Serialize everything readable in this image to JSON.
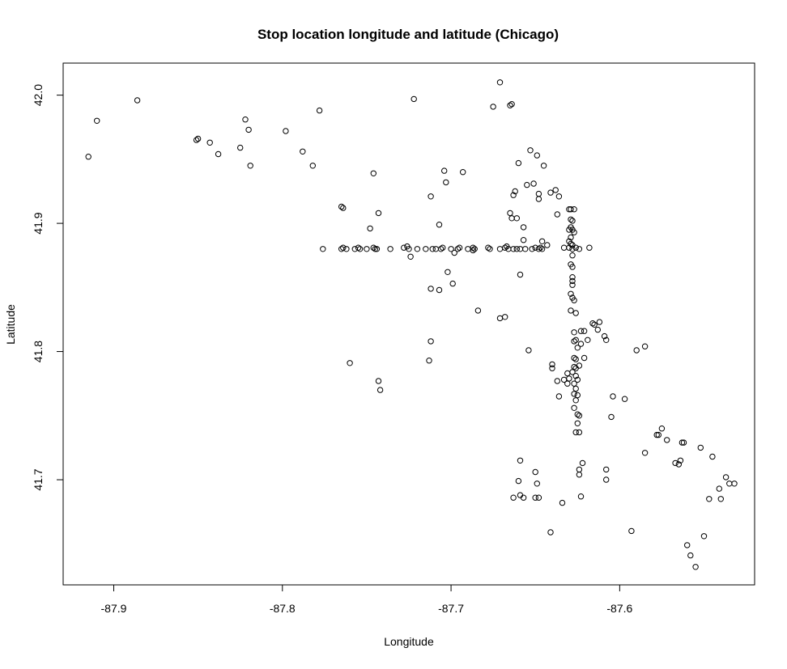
{
  "chart_data": {
    "type": "scatter",
    "title": "Stop location longitude and latitude (Chicago)",
    "xlabel": "Longitude",
    "ylabel": "Latitude",
    "xlim": [
      -87.93,
      -87.52
    ],
    "ylim": [
      41.618,
      42.025
    ],
    "x_ticks": [
      -87.9,
      -87.8,
      -87.7,
      -87.6
    ],
    "y_ticks": [
      41.7,
      41.8,
      41.9,
      42.0
    ],
    "x_tick_labels": [
      "-87.9",
      "-87.8",
      "-87.7",
      "-87.6"
    ],
    "y_tick_labels": [
      "41.7",
      "41.8",
      "41.9",
      "42.0"
    ],
    "grid": false,
    "legend": "none",
    "marker": "open-circle",
    "marker_color": "#000000",
    "series": [
      {
        "points": [
          [
            -87.915,
            41.952
          ],
          [
            -87.91,
            41.98
          ],
          [
            -87.886,
            41.996
          ],
          [
            -87.851,
            41.965
          ],
          [
            -87.85,
            41.966
          ],
          [
            -87.843,
            41.963
          ],
          [
            -87.838,
            41.954
          ],
          [
            -87.825,
            41.959
          ],
          [
            -87.822,
            41.981
          ],
          [
            -87.82,
            41.973
          ],
          [
            -87.819,
            41.945
          ],
          [
            -87.798,
            41.972
          ],
          [
            -87.788,
            41.956
          ],
          [
            -87.782,
            41.945
          ],
          [
            -87.778,
            41.988
          ],
          [
            -87.722,
            41.997
          ],
          [
            -87.675,
            41.991
          ],
          [
            -87.671,
            42.01
          ],
          [
            -87.665,
            41.992
          ],
          [
            -87.664,
            41.993
          ],
          [
            -87.765,
            41.913
          ],
          [
            -87.764,
            41.912
          ],
          [
            -87.746,
            41.939
          ],
          [
            -87.743,
            41.908
          ],
          [
            -87.748,
            41.896
          ],
          [
            -87.712,
            41.921
          ],
          [
            -87.707,
            41.899
          ],
          [
            -87.704,
            41.941
          ],
          [
            -87.703,
            41.932
          ],
          [
            -87.693,
            41.94
          ],
          [
            -87.66,
            41.947
          ],
          [
            -87.655,
            41.93
          ],
          [
            -87.653,
            41.957
          ],
          [
            -87.651,
            41.931
          ],
          [
            -87.649,
            41.953
          ],
          [
            -87.645,
            41.945
          ],
          [
            -87.641,
            41.924
          ],
          [
            -87.648,
            41.919
          ],
          [
            -87.648,
            41.923
          ],
          [
            -87.638,
            41.926
          ],
          [
            -87.636,
            41.921
          ],
          [
            -87.663,
            41.922
          ],
          [
            -87.662,
            41.925
          ],
          [
            -87.665,
            41.908
          ],
          [
            -87.664,
            41.904
          ],
          [
            -87.661,
            41.904
          ],
          [
            -87.657,
            41.897
          ],
          [
            -87.637,
            41.907
          ],
          [
            -87.657,
            41.887
          ],
          [
            -87.776,
            41.88
          ],
          [
            -87.765,
            41.88
          ],
          [
            -87.764,
            41.881
          ],
          [
            -87.762,
            41.88
          ],
          [
            -87.757,
            41.88
          ],
          [
            -87.755,
            41.881
          ],
          [
            -87.754,
            41.88
          ],
          [
            -87.75,
            41.88
          ],
          [
            -87.746,
            41.881
          ],
          [
            -87.745,
            41.88
          ],
          [
            -87.744,
            41.88
          ],
          [
            -87.736,
            41.88
          ],
          [
            -87.728,
            41.881
          ],
          [
            -87.726,
            41.882
          ],
          [
            -87.725,
            41.88
          ],
          [
            -87.724,
            41.874
          ],
          [
            -87.72,
            41.88
          ],
          [
            -87.715,
            41.88
          ],
          [
            -87.711,
            41.88
          ],
          [
            -87.709,
            41.88
          ],
          [
            -87.706,
            41.88
          ],
          [
            -87.705,
            41.881
          ],
          [
            -87.7,
            41.88
          ],
          [
            -87.698,
            41.877
          ],
          [
            -87.696,
            41.88
          ],
          [
            -87.695,
            41.881
          ],
          [
            -87.69,
            41.88
          ],
          [
            -87.687,
            41.881
          ],
          [
            -87.687,
            41.879
          ],
          [
            -87.686,
            41.88
          ],
          [
            -87.678,
            41.881
          ],
          [
            -87.677,
            41.88
          ],
          [
            -87.671,
            41.88
          ],
          [
            -87.668,
            41.881
          ],
          [
            -87.667,
            41.882
          ],
          [
            -87.666,
            41.88
          ],
          [
            -87.663,
            41.88
          ],
          [
            -87.661,
            41.88
          ],
          [
            -87.659,
            41.88
          ],
          [
            -87.656,
            41.88
          ],
          [
            -87.652,
            41.88
          ],
          [
            -87.65,
            41.881
          ],
          [
            -87.648,
            41.88
          ],
          [
            -87.647,
            41.881
          ],
          [
            -87.646,
            41.88
          ],
          [
            -87.646,
            41.886
          ],
          [
            -87.643,
            41.883
          ],
          [
            -87.633,
            41.881
          ],
          [
            -87.63,
            41.881
          ],
          [
            -87.628,
            41.88
          ],
          [
            -87.626,
            41.881
          ],
          [
            -87.624,
            41.88
          ],
          [
            -87.618,
            41.881
          ],
          [
            -87.659,
            41.86
          ],
          [
            -87.702,
            41.862
          ],
          [
            -87.699,
            41.853
          ],
          [
            -87.712,
            41.849
          ],
          [
            -87.707,
            41.848
          ],
          [
            -87.684,
            41.832
          ],
          [
            -87.671,
            41.826
          ],
          [
            -87.668,
            41.827
          ],
          [
            -87.712,
            41.808
          ],
          [
            -87.713,
            41.793
          ],
          [
            -87.76,
            41.791
          ],
          [
            -87.743,
            41.777
          ],
          [
            -87.742,
            41.77
          ],
          [
            -87.654,
            41.801
          ],
          [
            -87.63,
            41.911
          ],
          [
            -87.629,
            41.911
          ],
          [
            -87.627,
            41.911
          ],
          [
            -87.629,
            41.903
          ],
          [
            -87.628,
            41.902
          ],
          [
            -87.63,
            41.895
          ],
          [
            -87.629,
            41.897
          ],
          [
            -87.628,
            41.895
          ],
          [
            -87.627,
            41.893
          ],
          [
            -87.629,
            41.889
          ],
          [
            -87.63,
            41.886
          ],
          [
            -87.629,
            41.884
          ],
          [
            -87.628,
            41.883
          ],
          [
            -87.628,
            41.875
          ],
          [
            -87.629,
            41.868
          ],
          [
            -87.628,
            41.866
          ],
          [
            -87.628,
            41.858
          ],
          [
            -87.628,
            41.855
          ],
          [
            -87.628,
            41.852
          ],
          [
            -87.629,
            41.845
          ],
          [
            -87.628,
            41.842
          ],
          [
            -87.627,
            41.84
          ],
          [
            -87.629,
            41.832
          ],
          [
            -87.626,
            41.83
          ],
          [
            -87.627,
            41.815
          ],
          [
            -87.626,
            41.809
          ],
          [
            -87.627,
            41.808
          ],
          [
            -87.625,
            41.803
          ],
          [
            -87.623,
            41.806
          ],
          [
            -87.627,
            41.795
          ],
          [
            -87.626,
            41.794
          ],
          [
            -87.627,
            41.788
          ],
          [
            -87.626,
            41.787
          ],
          [
            -87.624,
            41.789
          ],
          [
            -87.628,
            41.784
          ],
          [
            -87.626,
            41.781
          ],
          [
            -87.625,
            41.778
          ],
          [
            -87.627,
            41.775
          ],
          [
            -87.626,
            41.771
          ],
          [
            -87.627,
            41.767
          ],
          [
            -87.625,
            41.766
          ],
          [
            -87.626,
            41.762
          ],
          [
            -87.627,
            41.756
          ],
          [
            -87.625,
            41.751
          ],
          [
            -87.624,
            41.75
          ],
          [
            -87.625,
            41.744
          ],
          [
            -87.626,
            41.737
          ],
          [
            -87.624,
            41.737
          ],
          [
            -87.623,
            41.816
          ],
          [
            -87.621,
            41.816
          ],
          [
            -87.619,
            41.809
          ],
          [
            -87.616,
            41.822
          ],
          [
            -87.615,
            41.821
          ],
          [
            -87.613,
            41.817
          ],
          [
            -87.612,
            41.823
          ],
          [
            -87.609,
            41.812
          ],
          [
            -87.608,
            41.809
          ],
          [
            -87.621,
            41.795
          ],
          [
            -87.633,
            41.778
          ],
          [
            -87.631,
            41.783
          ],
          [
            -87.64,
            41.79
          ],
          [
            -87.64,
            41.787
          ],
          [
            -87.637,
            41.777
          ],
          [
            -87.636,
            41.765
          ],
          [
            -87.63,
            41.779
          ],
          [
            -87.631,
            41.775
          ],
          [
            -87.604,
            41.765
          ],
          [
            -87.597,
            41.763
          ],
          [
            -87.605,
            41.749
          ],
          [
            -87.59,
            41.801
          ],
          [
            -87.585,
            41.804
          ],
          [
            -87.585,
            41.721
          ],
          [
            -87.578,
            41.735
          ],
          [
            -87.577,
            41.735
          ],
          [
            -87.575,
            41.74
          ],
          [
            -87.572,
            41.731
          ],
          [
            -87.567,
            41.713
          ],
          [
            -87.565,
            41.712
          ],
          [
            -87.564,
            41.715
          ],
          [
            -87.563,
            41.729
          ],
          [
            -87.562,
            41.729
          ],
          [
            -87.552,
            41.725
          ],
          [
            -87.545,
            41.718
          ],
          [
            -87.547,
            41.685
          ],
          [
            -87.541,
            41.693
          ],
          [
            -87.54,
            41.685
          ],
          [
            -87.537,
            41.702
          ],
          [
            -87.535,
            41.697
          ],
          [
            -87.532,
            41.697
          ],
          [
            -87.55,
            41.656
          ],
          [
            -87.56,
            41.649
          ],
          [
            -87.558,
            41.641
          ],
          [
            -87.555,
            41.632
          ],
          [
            -87.593,
            41.66
          ],
          [
            -87.608,
            41.708
          ],
          [
            -87.608,
            41.7
          ],
          [
            -87.622,
            41.713
          ],
          [
            -87.624,
            41.708
          ],
          [
            -87.624,
            41.704
          ],
          [
            -87.623,
            41.687
          ],
          [
            -87.634,
            41.682
          ],
          [
            -87.641,
            41.659
          ],
          [
            -87.659,
            41.715
          ],
          [
            -87.66,
            41.699
          ],
          [
            -87.659,
            41.688
          ],
          [
            -87.657,
            41.686
          ],
          [
            -87.663,
            41.686
          ],
          [
            -87.65,
            41.706
          ],
          [
            -87.649,
            41.697
          ],
          [
            -87.65,
            41.686
          ],
          [
            -87.648,
            41.686
          ]
        ]
      }
    ]
  }
}
